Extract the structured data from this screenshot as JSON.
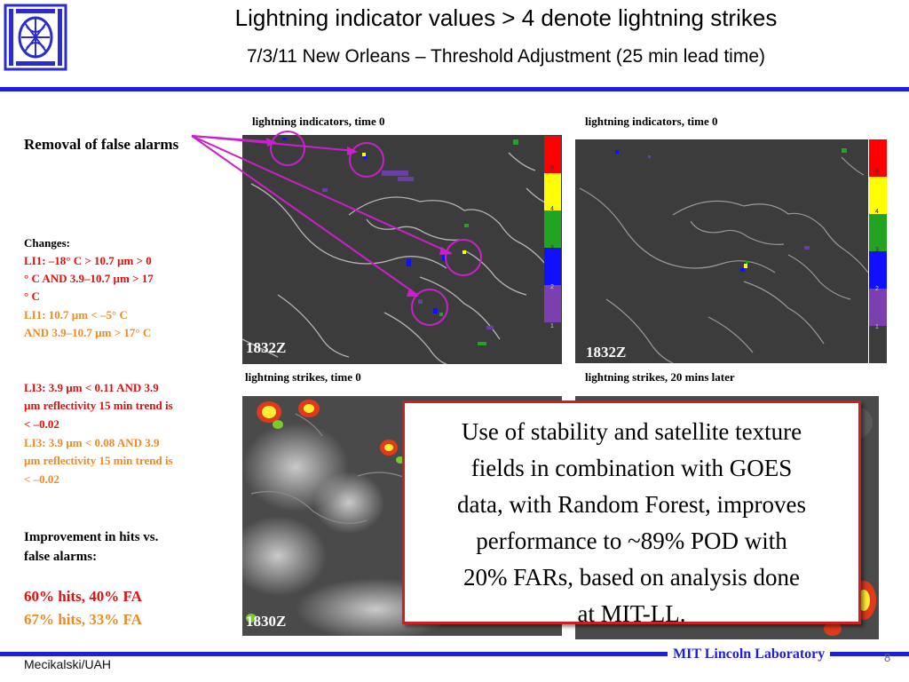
{
  "header": {
    "title": "Lightning indicator values > 4 denote lightning strikes",
    "subtitle": "7/3/11 New Orleans – Threshold Adjustment (25 min lead time)"
  },
  "panels": {
    "top_left_caption": "lightning indicators, time 0",
    "top_right_caption": "lightning indicators, time 0",
    "bottom_left_caption": "lightning strikes, time 0",
    "bottom_right_caption": "lightning strikes, 20 mins later",
    "top_left_time": "1832Z",
    "top_right_time": "1832Z",
    "bottom_left_time": "1830Z"
  },
  "colorbar": {
    "colors": [
      "#ff0000",
      "#ffff00",
      "#22a322",
      "#1010ff",
      "#7b3fb0"
    ],
    "ticks": [
      "6",
      "4",
      "3",
      "2",
      "1"
    ]
  },
  "left_column": {
    "heading": "Removal of false alarms",
    "changes_label": "Changes:",
    "li1_old_a": "LI1:  –18° C > 10.7 µm > 0",
    "li1_old_b": "° C AND 3.9–10.7 µm > 17",
    "li1_old_c": "° C",
    "li1_new_a": "LI1:  10.7 µm < –5° C",
    "li1_new_b": "AND 3.9–10.7 µm > 17° C",
    "li3_old_a": "LI3: 3.9 µm < 0.11 AND 3.9",
    "li3_old_b": "µm reflectivity 15 min trend is",
    "li3_old_c": "< –0.02",
    "li3_new_a": "LI3: 3.9 µm < 0.08 AND 3.9",
    "li3_new_b": "µm reflectivity 15 min trend is",
    "li3_new_c": "< –0.02",
    "improvement_a": "Improvement in hits vs.",
    "improvement_b": "false alarms:",
    "result_old": "60% hits, 40% FA",
    "result_new": "67% hits, 33% FA",
    "old_color": "#e01010",
    "new_color": "#f08a28"
  },
  "callout": {
    "lines": [
      "Use of stability and satellite texture",
      "fields in combination with GOES",
      "data, with Random Forest, improves",
      "performance to ~89% POD with",
      "20% FARs, based on analysis done",
      "at MIT-LL."
    ],
    "border_color": "#cc1f1f"
  },
  "footer": {
    "author": "Mecikalski/UAH",
    "lab": "MIT Lincoln Laboratory",
    "page": "8"
  }
}
